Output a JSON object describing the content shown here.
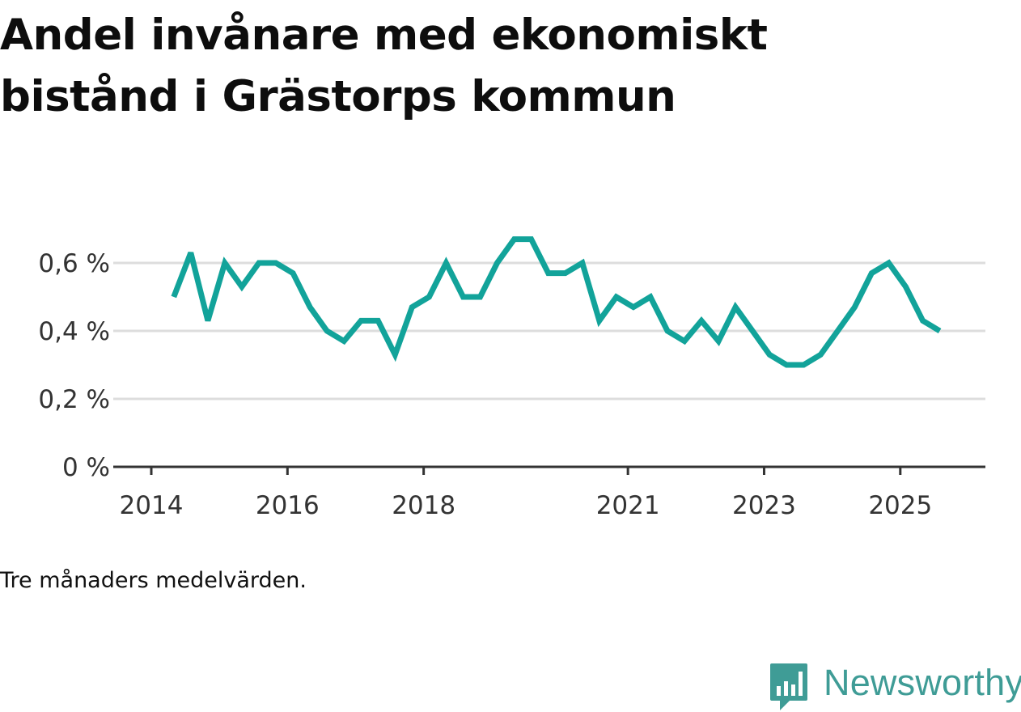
{
  "title": "Andel invånare med ekonomiskt bistånd i Grästorps kommun",
  "note": "Tre månaders medelvärden.",
  "brand": {
    "name": "Newsworthy",
    "icon": "newsworthy-logo-icon",
    "color": "#3f9c96"
  },
  "colors": {
    "line": "#12a39a",
    "grid": "#dddddd",
    "axis": "#333333"
  },
  "chart_data": {
    "type": "line",
    "title": "Andel invånare med ekonomiskt bistånd i Grästorps kommun",
    "xlabel": "",
    "ylabel": "",
    "unit": "%",
    "ylim": [
      0,
      0.7
    ],
    "yticks": [
      {
        "value": 0,
        "label": "0 %"
      },
      {
        "value": 0.2,
        "label": "0,2 %"
      },
      {
        "value": 0.4,
        "label": "0,4 %"
      },
      {
        "value": 0.6,
        "label": "0,6 %"
      }
    ],
    "xlim": [
      2014.0,
      2026.25
    ],
    "xticks": [
      {
        "value": 2014.0,
        "label": "2014"
      },
      {
        "value": 2016.0,
        "label": "2016"
      },
      {
        "value": 2018.0,
        "label": "2018"
      },
      {
        "value": 2021.0,
        "label": "2021"
      },
      {
        "value": 2023.0,
        "label": "2023"
      },
      {
        "value": 2025.0,
        "label": "2025"
      }
    ],
    "grid": true,
    "series": [
      {
        "name": "Andel invånare med ekonomiskt bistånd",
        "x": [
          2014.33,
          2014.58,
          2014.83,
          2015.08,
          2015.33,
          2015.58,
          2015.83,
          2016.08,
          2016.33,
          2016.58,
          2016.83,
          2017.08,
          2017.33,
          2017.58,
          2017.83,
          2018.08,
          2018.33,
          2018.58,
          2018.83,
          2019.08,
          2019.33,
          2019.58,
          2019.83,
          2020.08,
          2020.33,
          2020.58,
          2020.83,
          2021.08,
          2021.33,
          2021.58,
          2021.83,
          2022.08,
          2022.33,
          2022.58,
          2022.83,
          2023.08,
          2023.33,
          2023.58,
          2023.83,
          2024.08,
          2024.33,
          2024.58,
          2024.83,
          2025.08,
          2025.33,
          2025.58
        ],
        "values": [
          0.5,
          0.63,
          0.43,
          0.6,
          0.53,
          0.6,
          0.6,
          0.57,
          0.47,
          0.4,
          0.37,
          0.43,
          0.43,
          0.33,
          0.47,
          0.5,
          0.6,
          0.5,
          0.5,
          0.6,
          0.67,
          0.67,
          0.57,
          0.57,
          0.6,
          0.43,
          0.5,
          0.47,
          0.5,
          0.4,
          0.37,
          0.43,
          0.37,
          0.47,
          0.4,
          0.33,
          0.3,
          0.3,
          0.33,
          0.4,
          0.47,
          0.57,
          0.6,
          0.53,
          0.43,
          0.4
        ]
      }
    ]
  }
}
